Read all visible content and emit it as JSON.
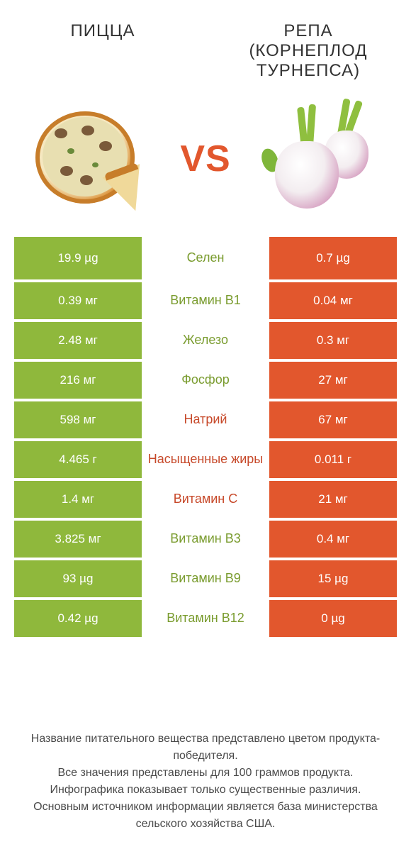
{
  "colors": {
    "left_bg": "#8fb83c",
    "right_bg": "#e2572d",
    "label_left_winner": "#7a9c2f",
    "label_right_winner": "#c7492a",
    "label_default": "#555555"
  },
  "left_product": {
    "title": "ПИЦЦА"
  },
  "right_product": {
    "title": "РЕПА (КОРНЕПЛОД ТУРНЕПСА)"
  },
  "vs_label": "VS",
  "rows": [
    {
      "nutrient": "Селен",
      "left": "19.9 µg",
      "right": "0.7 µg",
      "winner": "left"
    },
    {
      "nutrient": "Витамин B1",
      "left": "0.39 мг",
      "right": "0.04 мг",
      "winner": "left"
    },
    {
      "nutrient": "Железо",
      "left": "2.48 мг",
      "right": "0.3 мг",
      "winner": "left"
    },
    {
      "nutrient": "Фосфор",
      "left": "216 мг",
      "right": "27 мг",
      "winner": "left"
    },
    {
      "nutrient": "Натрий",
      "left": "598 мг",
      "right": "67 мг",
      "winner": "right"
    },
    {
      "nutrient": "Насыщенные жиры",
      "left": "4.465 г",
      "right": "0.011 г",
      "winner": "right"
    },
    {
      "nutrient": "Витамин C",
      "left": "1.4 мг",
      "right": "21 мг",
      "winner": "right"
    },
    {
      "nutrient": "Витамин B3",
      "left": "3.825 мг",
      "right": "0.4 мг",
      "winner": "left"
    },
    {
      "nutrient": "Витамин B9",
      "left": "93 µg",
      "right": "15 µg",
      "winner": "left"
    },
    {
      "nutrient": "Витамин B12",
      "left": "0.42 µg",
      "right": "0 µg",
      "winner": "left"
    }
  ],
  "footer_lines": [
    "Название питательного вещества представлено цветом продукта-победителя.",
    "Все значения представлены для 100 граммов продукта.",
    "Инфографика показывает только существенные различия.",
    "Основным источником информации является база министерства сельского хозяйства США."
  ]
}
